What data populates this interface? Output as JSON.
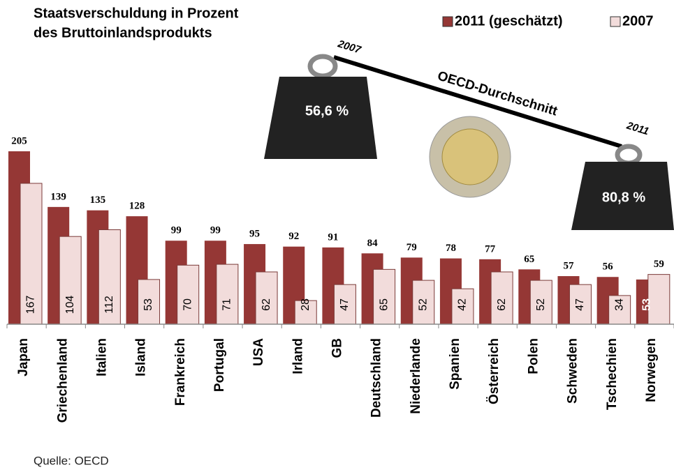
{
  "chart_data": {
    "type": "bar",
    "title": [
      "Staatsverschuldung in Prozent",
      "des Bruttoinlandsprodukts"
    ],
    "categories": [
      "Japan",
      "Griechenland",
      "Italien",
      "Island",
      "Frankreich",
      "Portugal",
      "USA",
      "Irland",
      "GB",
      "Deutschland",
      "Niederlande",
      "Spanien",
      "Österreich",
      "Polen",
      "Schweden",
      "Tschechien",
      "Norwegen"
    ],
    "series": [
      {
        "name": "2011 (geschätzt)",
        "color": "#953735",
        "values": [
          205,
          139,
          135,
          128,
          99,
          99,
          95,
          92,
          91,
          84,
          79,
          78,
          77,
          65,
          57,
          56,
          53
        ]
      },
      {
        "name": "2007",
        "color": "#f2dcdb",
        "values": [
          167,
          104,
          112,
          53,
          70,
          71,
          62,
          28,
          47,
          65,
          52,
          42,
          62,
          52,
          47,
          34,
          59
        ]
      }
    ],
    "annotations": {
      "left_year": "2007",
      "line_label": "OECD-Durchschnitt",
      "right_year": "2011",
      "left_weight": "56,6 %",
      "right_weight": "80,8 %"
    },
    "source": "Quelle: OECD"
  }
}
